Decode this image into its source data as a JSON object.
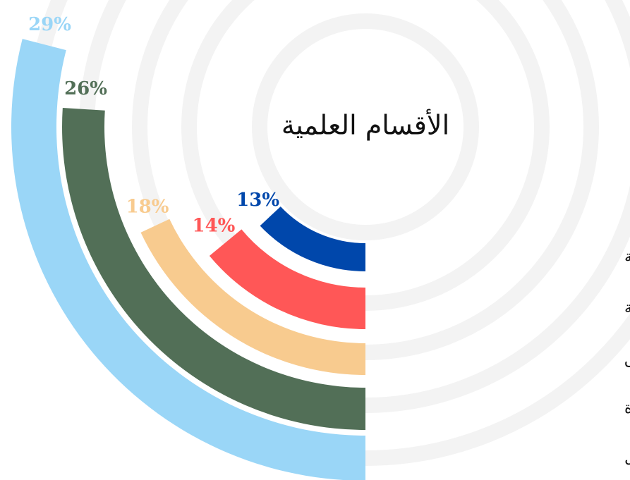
{
  "chart_data": {
    "type": "radial_bar",
    "title": "الأقسام العلمية",
    "series": [
      {
        "name": "قسم نظم المعلومات الادارية",
        "color": "#0047ab",
        "value": 13,
        "value_label": "13%"
      },
      {
        "name": "قسم المحاسبة",
        "color": "#ff5757",
        "value": 14,
        "value_label": "14%"
      },
      {
        "name": "قسم التسويق",
        "color": "#f8cb8f",
        "value": 18,
        "value_label": "18%"
      },
      {
        "name": "قسم الادارة",
        "color": "#526f57",
        "value": 26,
        "value_label": "26%"
      },
      {
        "name": "قسم الاقتصاد والتمويل",
        "color": "#9ad6f7",
        "value": 29,
        "value_label": "29%"
      }
    ]
  }
}
